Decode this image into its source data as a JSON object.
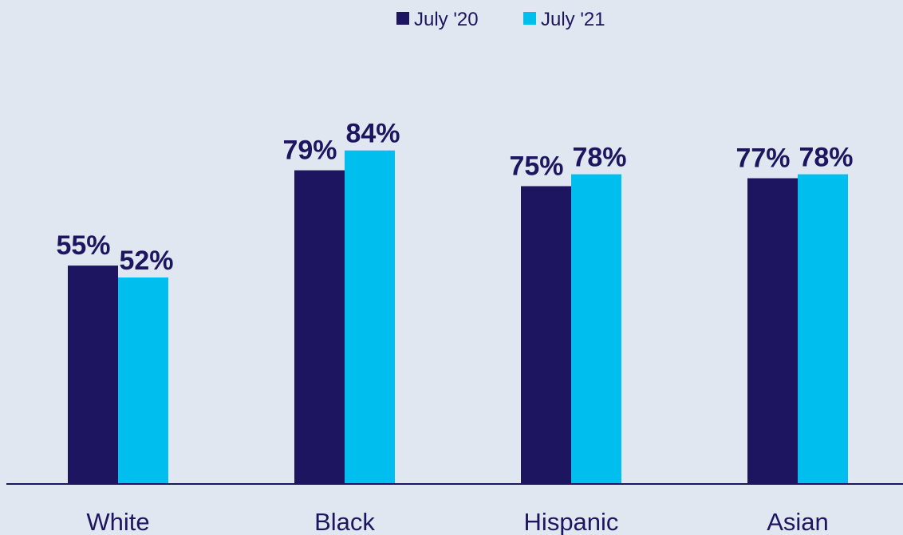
{
  "chart_data": {
    "type": "bar",
    "categories": [
      "White",
      "Black",
      "Hispanic",
      "Asian"
    ],
    "series": [
      {
        "name": "July '20",
        "values": [
          55,
          79,
          75,
          77
        ],
        "labels": [
          "55%",
          "79%",
          "75%",
          "77%"
        ],
        "color": "#1D1560"
      },
      {
        "name": "July '21",
        "values": [
          52,
          84,
          78,
          78
        ],
        "labels": [
          "52%",
          "84%",
          "78%",
          "78%"
        ],
        "color": "#00BFEF"
      }
    ],
    "title": "",
    "xlabel": "",
    "ylabel": "",
    "ylim": [
      0,
      100
    ],
    "grid": false,
    "legend_position": "top-center",
    "value_format": "percent"
  },
  "colors": {
    "background": "#E1E7F1",
    "axis": "#1D1560",
    "text": "#1D1560"
  }
}
